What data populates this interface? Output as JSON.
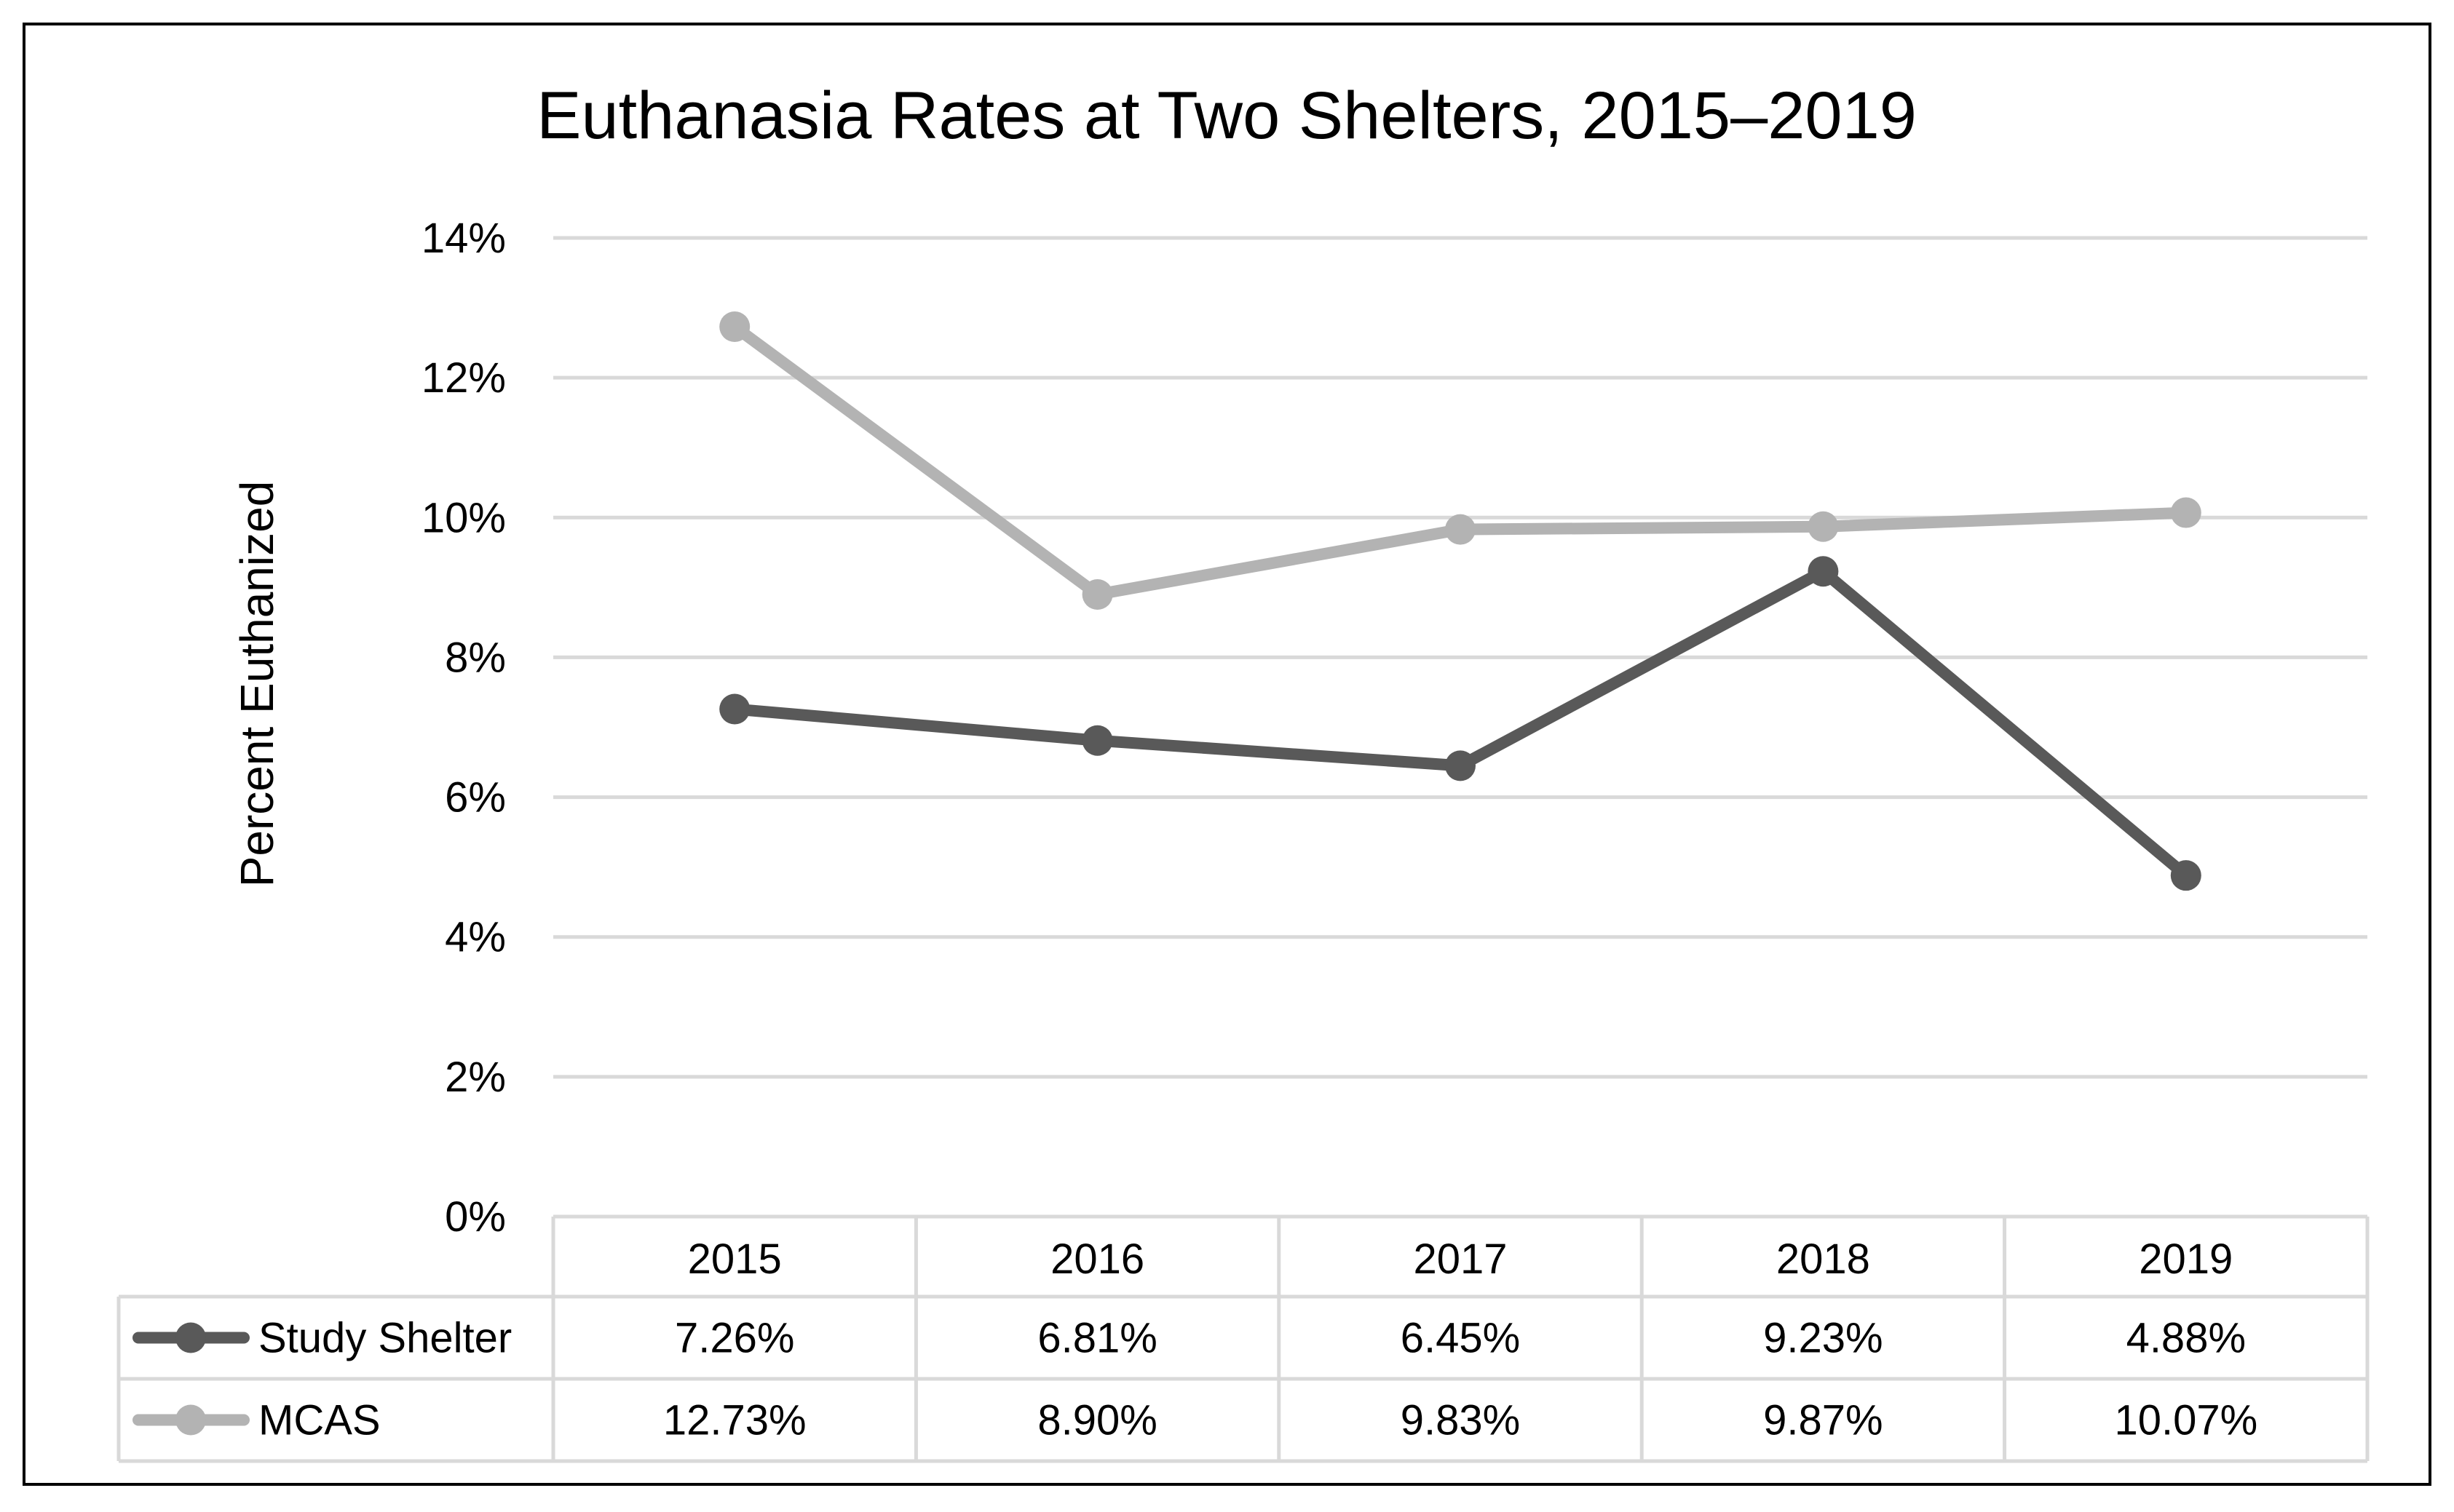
{
  "chart_data": {
    "type": "line",
    "title": "Euthanasia Rates at Two Shelters, 2015–2019",
    "ylabel": "Percent Euthanized",
    "xlabel": "",
    "ylim": [
      0,
      14
    ],
    "y_ticks": [
      "0%",
      "2%",
      "4%",
      "6%",
      "8%",
      "10%",
      "12%",
      "14%"
    ],
    "grid": true,
    "legend": "data-table-left",
    "categories": [
      "2015",
      "2016",
      "2017",
      "2018",
      "2019"
    ],
    "series": [
      {
        "name": "Study Shelter",
        "color": "#595959",
        "values": [
          7.26,
          6.81,
          6.45,
          9.23,
          4.88
        ],
        "labels": [
          "7.26%",
          "6.81%",
          "6.45%",
          "9.23%",
          "4.88%"
        ]
      },
      {
        "name": "MCAS",
        "color": "#b3b3b3",
        "values": [
          12.73,
          8.9,
          9.83,
          9.87,
          10.07
        ],
        "labels": [
          "12.73%",
          "8.90%",
          "9.83%",
          "9.87%",
          "10.07%"
        ]
      }
    ]
  }
}
